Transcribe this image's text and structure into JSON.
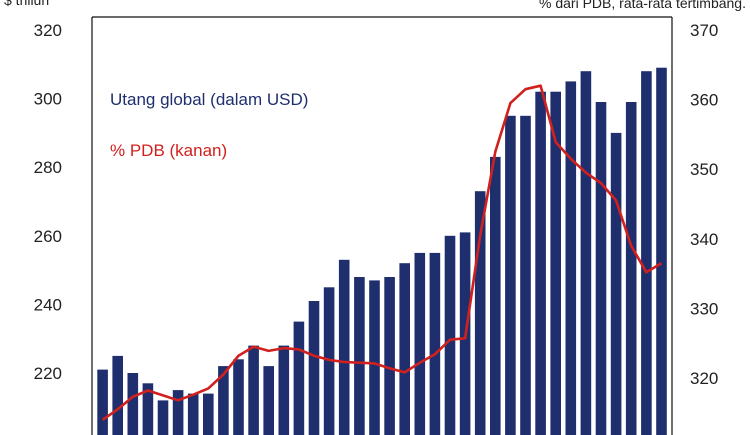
{
  "chart_data": {
    "type": "bar",
    "left_axis_unit": "$ triliun",
    "right_axis_unit": "% dari PDB, rata-rata tertimbang.",
    "y_left": {
      "range": [
        200,
        320
      ],
      "ticks": [
        220,
        240,
        260,
        280,
        300,
        320
      ]
    },
    "y_right": {
      "range": [
        314,
        370
      ],
      "ticks": [
        320,
        330,
        340,
        350,
        360,
        370
      ]
    },
    "grid": false,
    "legend_placement": "top-left",
    "colors": {
      "bars": "#1f2f6e",
      "line": "#d1201d"
    },
    "series": [
      {
        "name": "Utang global (dalam USD)",
        "type": "bar",
        "axis": "left",
        "values": [
          221,
          225,
          220,
          217,
          212,
          215,
          214,
          214,
          222,
          224,
          228,
          222,
          228,
          235,
          241,
          245,
          253,
          248,
          247,
          248,
          252,
          255,
          255,
          260,
          261,
          273,
          283,
          295,
          295,
          302,
          302,
          305,
          308,
          299,
          290,
          299,
          308,
          309
        ]
      },
      {
        "name": "% PDB (kanan)",
        "type": "line",
        "axis": "right",
        "values": [
          314,
          315.5,
          317.3,
          318.2,
          317.5,
          316.8,
          317.6,
          318.5,
          320.5,
          323.2,
          324.5,
          323.9,
          324.3,
          324.1,
          323.2,
          322.6,
          322.3,
          322.2,
          322.1,
          321.4,
          320.8,
          322.2,
          323.4,
          325.5,
          325.7,
          340.5,
          352.5,
          359.5,
          361.5,
          362,
          353.9,
          351.5,
          349.5,
          348,
          345.5,
          339,
          335.2,
          336.5
        ]
      }
    ]
  }
}
